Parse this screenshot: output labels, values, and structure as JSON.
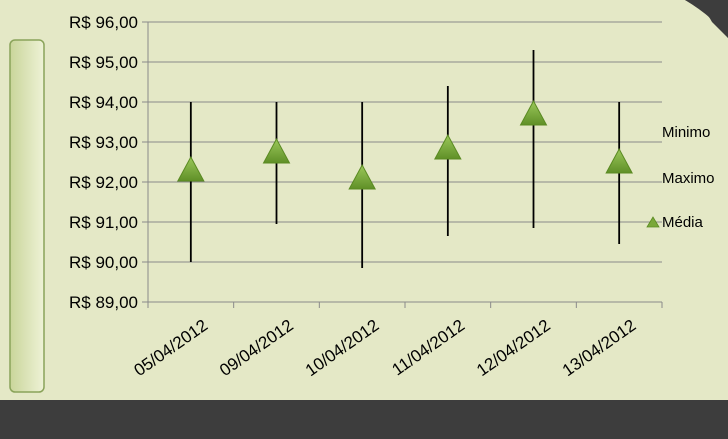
{
  "chart_data": {
    "type": "stock-hlc",
    "title": "",
    "xlabel": "",
    "ylabel": "",
    "categories": [
      "05/04/2012",
      "09/04/2012",
      "10/04/2012",
      "11/04/2012",
      "12/04/2012",
      "13/04/2012"
    ],
    "series": [
      {
        "name": "Minimo",
        "values": [
          90.0,
          90.95,
          89.85,
          90.65,
          90.85,
          90.45
        ]
      },
      {
        "name": "Maximo",
        "values": [
          94.0,
          94.0,
          94.0,
          94.4,
          95.3,
          94.0
        ]
      },
      {
        "name": "Média",
        "values": [
          92.3,
          92.75,
          92.1,
          92.85,
          93.7,
          92.5
        ]
      }
    ],
    "y_tick_labels": [
      "R$ 89,00",
      "R$ 90,00",
      "R$ 91,00",
      "R$ 92,00",
      "R$ 93,00",
      "R$ 94,00",
      "R$ 95,00",
      "R$ 96,00"
    ],
    "ylim": [
      89,
      96
    ],
    "grid": true,
    "legend_position": "right",
    "colors": {
      "range_line": "#000000",
      "marker_fill": "#7aa83a",
      "marker_edge": "#5a8a22",
      "gridline": "#8a8a8a",
      "plot_background": "#e4e8c6",
      "left_panel": "#dde6b8",
      "frame": "#3d3d3d"
    }
  }
}
